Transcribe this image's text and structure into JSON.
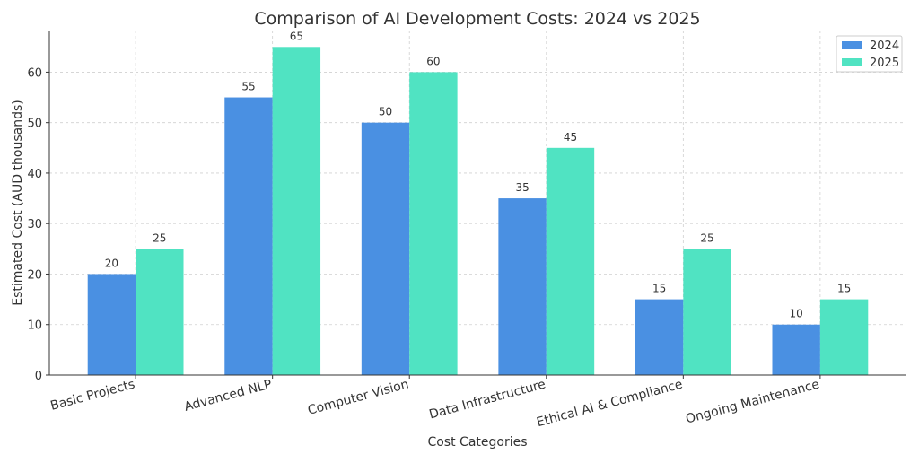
{
  "chart_data": {
    "type": "bar",
    "title": "Comparison of AI Development Costs: 2024 vs 2025",
    "xlabel": "Cost Categories",
    "ylabel": "Estimated Cost (AUD thousands)",
    "categories": [
      "Basic Projects",
      "Advanced NLP",
      "Computer Vision",
      "Data Infrastructure",
      "Ethical AI & Compliance",
      "Ongoing Maintenance"
    ],
    "series": [
      {
        "name": "2024",
        "values": [
          20,
          55,
          50,
          35,
          15,
          10
        ],
        "color": "#4a90e2"
      },
      {
        "name": "2025",
        "values": [
          25,
          65,
          60,
          45,
          25,
          15
        ],
        "color": "#50e3c2"
      }
    ],
    "ylim": [
      0,
      68.25
    ],
    "yticks": [
      0,
      10,
      20,
      30,
      40,
      50,
      60
    ],
    "grid": true,
    "legend_placement": "top-right"
  }
}
